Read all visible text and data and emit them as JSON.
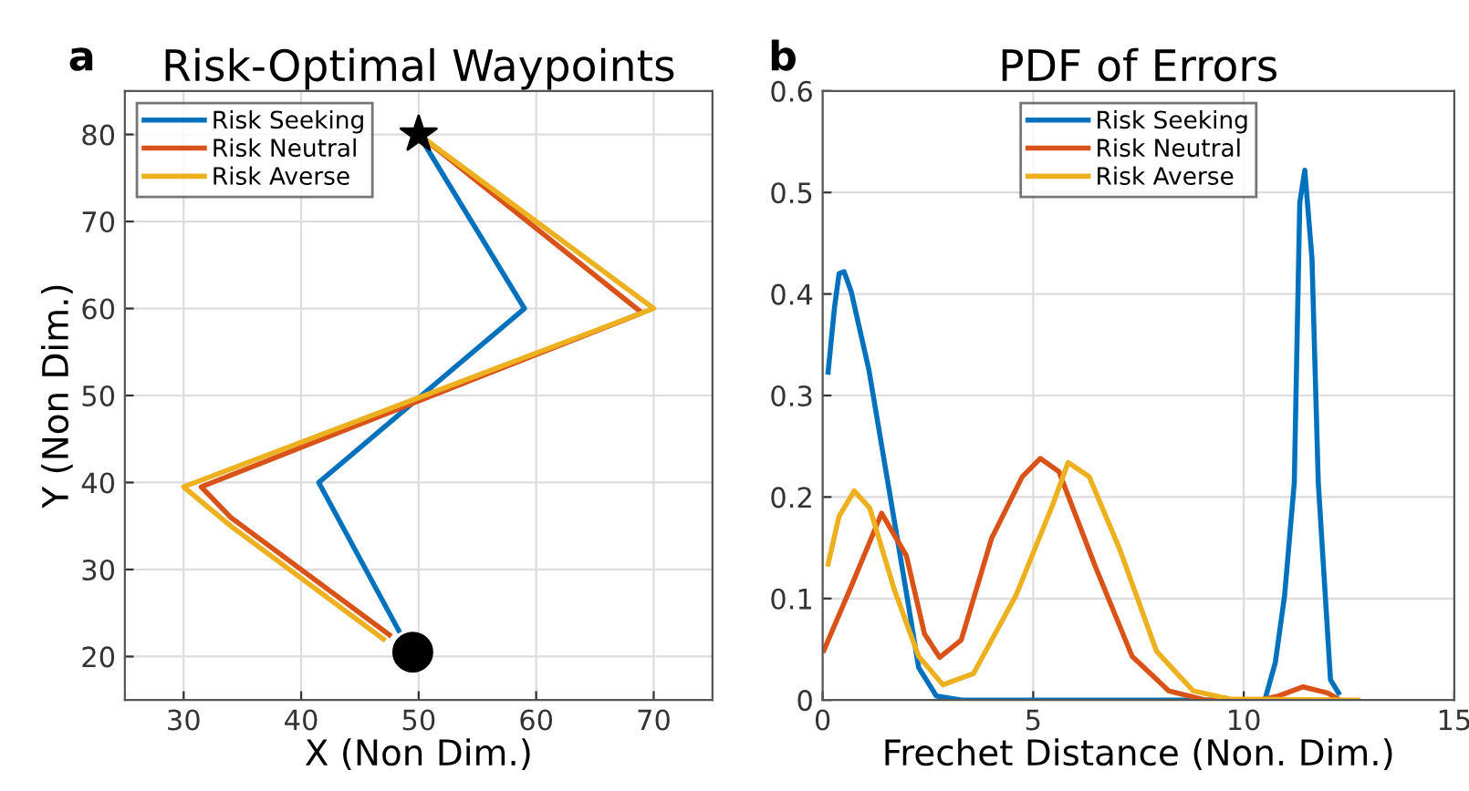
{
  "chart_data": [
    {
      "type": "line",
      "title": "Risk-Optimal Waypoints",
      "xlabel": "X (Non Dim.)",
      "ylabel": "Y (Non Dim.)",
      "annotations": [
        "a"
      ],
      "xlim": [
        25,
        75
      ],
      "ylim": [
        15,
        85
      ],
      "xticks": [
        30,
        40,
        50,
        60,
        70
      ],
      "yticks": [
        20,
        30,
        40,
        50,
        60,
        70,
        80
      ],
      "grid": true,
      "legend": "top left",
      "marker": "none",
      "series": [
        {
          "name": "Risk Seeking",
          "color": "#0072bd",
          "x": [
            50,
            59,
            41.5,
            48.3
          ],
          "values": [
            80,
            60,
            40,
            23
          ]
        },
        {
          "name": "Risk Neutral",
          "color": "#d95319",
          "x": [
            50,
            69,
            31.5,
            34,
            47.5
          ],
          "values": [
            80,
            59.5,
            39.5,
            36,
            22.5
          ]
        },
        {
          "name": "Risk Averse",
          "color": "#edb120",
          "x": [
            50,
            70,
            30,
            34,
            47
          ],
          "values": [
            80,
            60,
            39.5,
            35,
            22
          ]
        },
        {
          "type": "scatter",
          "marker": "star",
          "color": "#000000",
          "x": [
            50
          ],
          "values": [
            80
          ]
        },
        {
          "type": "scatter",
          "marker": "circle",
          "color": "#000000",
          "x": [
            49.5
          ],
          "values": [
            20.5
          ]
        }
      ]
    },
    {
      "type": "line",
      "title": "PDF of Errors",
      "xlabel": "Frechet Distance (Non. Dim.)",
      "annotations": [
        "b"
      ],
      "xlim": [
        0,
        15
      ],
      "ylim": [
        0,
        0.6
      ],
      "xticks": [
        0,
        5,
        10,
        15
      ],
      "yticks": [
        0,
        0.1,
        0.2,
        0.3,
        0.4,
        0.5,
        0.6
      ],
      "grid": true,
      "legend": "top",
      "marker": "none",
      "series": [
        {
          "name": "Risk Seeking",
          "color": "#0072bd",
          "x": [
            0.13,
            0.28,
            0.39,
            0.51,
            0.68,
            1.1,
            1.55,
            2.0,
            2.28,
            2.7,
            3.3,
            10.5,
            10.75,
            10.97,
            11.2,
            11.33,
            11.45,
            11.62,
            11.77,
            12.06,
            12.25
          ],
          "values": [
            0.323,
            0.386,
            0.42,
            0.422,
            0.402,
            0.325,
            0.214,
            0.103,
            0.032,
            0.004,
            0,
            0,
            0.037,
            0.103,
            0.214,
            0.49,
            0.522,
            0.435,
            0.214,
            0.02,
            0.007
          ]
        },
        {
          "name": "Risk Neutral",
          "color": "#d95319",
          "x": [
            0.03,
            0.68,
            1.4,
            1.99,
            2.42,
            2.78,
            3.29,
            4.01,
            4.74,
            5.17,
            5.61,
            6.48,
            7.35,
            8.22,
            9.09,
            10.39,
            10.83,
            11.41,
            11.99,
            12.28
          ],
          "values": [
            0.049,
            0.112,
            0.184,
            0.142,
            0.065,
            0.042,
            0.059,
            0.159,
            0.22,
            0.238,
            0.225,
            0.131,
            0.043,
            0.009,
            0,
            0,
            0.004,
            0.013,
            0.007,
            0
          ]
        },
        {
          "name": "Risk Averse",
          "color": "#edb120",
          "x": [
            0.13,
            0.39,
            0.75,
            1.12,
            1.7,
            2.28,
            2.86,
            3.58,
            4.59,
            5.46,
            5.83,
            6.33,
            7.06,
            7.93,
            8.8,
            9.67,
            12.71
          ],
          "values": [
            0.134,
            0.181,
            0.206,
            0.189,
            0.109,
            0.043,
            0.015,
            0.026,
            0.103,
            0.192,
            0.234,
            0.22,
            0.148,
            0.048,
            0.009,
            0.001,
            0
          ]
        }
      ]
    }
  ]
}
